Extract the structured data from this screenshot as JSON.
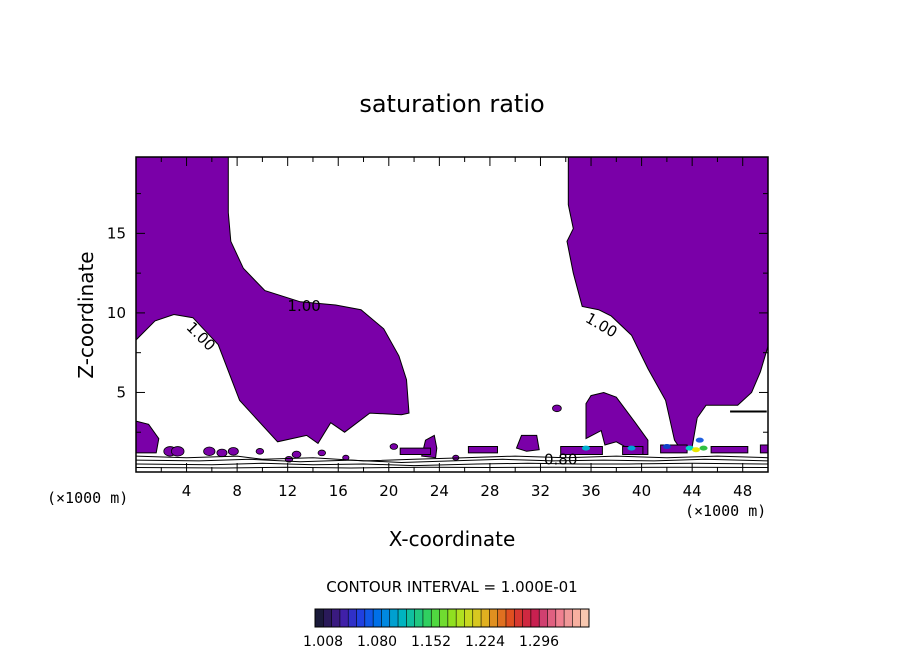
{
  "chart_data": {
    "type": "contour",
    "title": "saturation ratio",
    "xlabel": "X-coordinate",
    "ylabel": "Z-coordinate",
    "xunit_left": "(×1000 m)",
    "xunit_right": "(×1000 m)",
    "xlim": [
      0,
      50
    ],
    "ylim": [
      0,
      19.8
    ],
    "xticks": [
      4,
      8,
      12,
      16,
      20,
      24,
      28,
      32,
      36,
      40,
      44,
      48
    ],
    "yticks": [
      5,
      10,
      15
    ],
    "fill_color": "#7a00a8",
    "contour_labels": [
      {
        "text": "1.00",
        "x": 13.3,
        "y": 10.4,
        "rotate": 0
      },
      {
        "text": "1.00",
        "x": 5.1,
        "y": 8.5,
        "rotate": 45
      },
      {
        "text": "1.00",
        "x": 36.8,
        "y": 9.2,
        "rotate": 30
      },
      {
        "text": "0.80",
        "x": 33.6,
        "y": 0.75,
        "rotate": 0
      }
    ],
    "regions": [
      {
        "name": "upper-left-supersaturated",
        "points": [
          [
            0,
            19.8
          ],
          [
            7.3,
            19.8
          ],
          [
            7.3,
            16.3
          ],
          [
            7.5,
            14.5
          ],
          [
            8.5,
            12.8
          ],
          [
            10.2,
            11.4
          ],
          [
            13,
            10.7
          ],
          [
            15.8,
            10.5
          ],
          [
            17.8,
            10.2
          ],
          [
            19.6,
            9.0
          ],
          [
            20.8,
            7.3
          ],
          [
            21.4,
            5.8
          ],
          [
            21.6,
            3.7
          ],
          [
            21,
            3.6
          ],
          [
            18.5,
            3.7
          ],
          [
            16.5,
            2.5
          ],
          [
            15.4,
            3.1
          ],
          [
            14.4,
            1.8
          ],
          [
            13.5,
            2.3
          ],
          [
            11.2,
            1.9
          ],
          [
            8.2,
            4.5
          ],
          [
            6.5,
            8.0
          ],
          [
            4.5,
            9.7
          ],
          [
            3.0,
            9.9
          ],
          [
            1.5,
            9.5
          ],
          [
            0,
            8.3
          ]
        ]
      },
      {
        "name": "upper-right-supersaturated",
        "points": [
          [
            34.2,
            19.8
          ],
          [
            50,
            19.8
          ],
          [
            50,
            7.9
          ],
          [
            49.4,
            6.3
          ],
          [
            48.7,
            5.0
          ],
          [
            47.6,
            4.2
          ],
          [
            45.1,
            4.2
          ],
          [
            44.4,
            3.4
          ],
          [
            44.0,
            1.6
          ],
          [
            43.2,
            1.3
          ],
          [
            42.6,
            2.0
          ],
          [
            41.9,
            4.5
          ],
          [
            40.5,
            6.5
          ],
          [
            39.2,
            8.6
          ],
          [
            37.6,
            9.8
          ],
          [
            36.6,
            10.2
          ],
          [
            35.3,
            10.4
          ],
          [
            34.6,
            12.5
          ],
          [
            34.1,
            14.5
          ],
          [
            34.6,
            15.3
          ],
          [
            34.2,
            16.8
          ]
        ]
      },
      {
        "name": "right-blob",
        "points": [
          [
            35.6,
            2.1
          ],
          [
            35.6,
            4.3
          ],
          [
            36.0,
            4.8
          ],
          [
            37.0,
            5.0
          ],
          [
            38.0,
            4.7
          ],
          [
            39.5,
            3.1
          ],
          [
            40.5,
            2.0
          ],
          [
            40.5,
            1.1
          ],
          [
            39.8,
            1.1
          ],
          [
            38.0,
            1.9
          ],
          [
            37.1,
            1.7
          ],
          [
            36.8,
            2.6
          ]
        ]
      },
      {
        "name": "left-edge-blob",
        "points": [
          [
            0,
            3.2
          ],
          [
            1.0,
            3.0
          ],
          [
            1.8,
            2.1
          ],
          [
            1.6,
            1.2
          ],
          [
            0,
            1.2
          ]
        ]
      },
      {
        "name": "blob-23",
        "points": [
          [
            22.6,
            1.0
          ],
          [
            22.9,
            2.0
          ],
          [
            23.6,
            2.3
          ],
          [
            23.8,
            1.5
          ],
          [
            23.7,
            0.9
          ]
        ]
      },
      {
        "name": "blob-31",
        "points": [
          [
            30.1,
            1.5
          ],
          [
            30.5,
            2.3
          ],
          [
            31.7,
            2.3
          ],
          [
            31.9,
            1.4
          ],
          [
            30.9,
            1.3
          ]
        ]
      },
      {
        "name": "strip-1",
        "points": [
          [
            20.9,
            1.1
          ],
          [
            23.3,
            1.1
          ],
          [
            23.3,
            1.5
          ],
          [
            20.9,
            1.5
          ]
        ]
      },
      {
        "name": "strip-2",
        "points": [
          [
            26.3,
            1.2
          ],
          [
            28.6,
            1.2
          ],
          [
            28.6,
            1.6
          ],
          [
            26.3,
            1.6
          ]
        ]
      },
      {
        "name": "strip-3",
        "points": [
          [
            33.6,
            1.1
          ],
          [
            36.9,
            1.1
          ],
          [
            36.9,
            1.6
          ],
          [
            33.6,
            1.6
          ]
        ]
      },
      {
        "name": "strip-4",
        "points": [
          [
            38.5,
            1.1
          ],
          [
            40.1,
            1.1
          ],
          [
            40.1,
            1.6
          ],
          [
            38.5,
            1.6
          ]
        ]
      },
      {
        "name": "strip-5",
        "points": [
          [
            41.5,
            1.2
          ],
          [
            43.6,
            1.2
          ],
          [
            43.6,
            1.7
          ],
          [
            41.5,
            1.7
          ]
        ]
      },
      {
        "name": "strip-6",
        "points": [
          [
            45.5,
            1.2
          ],
          [
            48.4,
            1.2
          ],
          [
            48.4,
            1.6
          ],
          [
            45.5,
            1.6
          ]
        ]
      },
      {
        "name": "strip-7",
        "points": [
          [
            49.4,
            1.2
          ],
          [
            50,
            1.2
          ],
          [
            50,
            1.7
          ],
          [
            49.4,
            1.7
          ]
        ]
      }
    ],
    "speckles": [
      {
        "x": 2.7,
        "y": 1.3,
        "r": 0.5
      },
      {
        "x": 3.3,
        "y": 1.3,
        "r": 0.5
      },
      {
        "x": 5.8,
        "y": 1.3,
        "r": 0.45
      },
      {
        "x": 6.8,
        "y": 1.2,
        "r": 0.4
      },
      {
        "x": 7.7,
        "y": 1.3,
        "r": 0.4
      },
      {
        "x": 9.8,
        "y": 1.3,
        "r": 0.3
      },
      {
        "x": 12.1,
        "y": 0.8,
        "r": 0.3
      },
      {
        "x": 12.7,
        "y": 1.1,
        "r": 0.35
      },
      {
        "x": 14.7,
        "y": 1.2,
        "r": 0.3
      },
      {
        "x": 16.6,
        "y": 0.9,
        "r": 0.25
      },
      {
        "x": 20.4,
        "y": 1.6,
        "r": 0.3
      },
      {
        "x": 25.3,
        "y": 0.9,
        "r": 0.25
      },
      {
        "x": 33.3,
        "y": 4.0,
        "r": 0.35
      }
    ],
    "hotspots": [
      {
        "x": 43.8,
        "y": 1.5,
        "color": "#00d8c8"
      },
      {
        "x": 44.3,
        "y": 1.4,
        "color": "#e8e800"
      },
      {
        "x": 44.9,
        "y": 1.5,
        "color": "#30c040"
      },
      {
        "x": 35.6,
        "y": 1.5,
        "color": "#00b0d0"
      },
      {
        "x": 39.2,
        "y": 1.5,
        "color": "#00a0d8"
      },
      {
        "x": 42.0,
        "y": 1.6,
        "color": "#1040c8"
      },
      {
        "x": 44.6,
        "y": 2.0,
        "color": "#2060e0"
      }
    ],
    "contour_lines": [
      {
        "name": "contour-line",
        "points": [
          [
            0,
            1.0
          ],
          [
            4,
            0.9
          ],
          [
            8,
            1.0
          ],
          [
            10,
            0.8
          ],
          [
            14,
            0.9
          ],
          [
            18,
            0.7
          ],
          [
            22,
            0.8
          ],
          [
            26,
            0.9
          ],
          [
            30,
            1.0
          ],
          [
            34,
            0.9
          ],
          [
            38,
            1.0
          ],
          [
            42,
            0.9
          ],
          [
            46,
            1.0
          ],
          [
            50,
            0.9
          ]
        ]
      },
      {
        "name": "contour-line",
        "points": [
          [
            0,
            0.75
          ],
          [
            5,
            0.7
          ],
          [
            9,
            0.8
          ],
          [
            13,
            0.65
          ],
          [
            17,
            0.75
          ],
          [
            21,
            0.6
          ],
          [
            25,
            0.7
          ],
          [
            29,
            0.8
          ],
          [
            33,
            0.7
          ],
          [
            37,
            0.75
          ],
          [
            41,
            0.7
          ],
          [
            45,
            0.8
          ],
          [
            50,
            0.7
          ]
        ]
      },
      {
        "name": "contour-line",
        "points": [
          [
            0,
            0.5
          ],
          [
            6,
            0.45
          ],
          [
            10,
            0.55
          ],
          [
            14,
            0.45
          ],
          [
            18,
            0.5
          ],
          [
            22,
            0.4
          ],
          [
            27,
            0.5
          ],
          [
            31,
            0.55
          ],
          [
            35,
            0.5
          ],
          [
            39,
            0.5
          ],
          [
            44,
            0.55
          ],
          [
            50,
            0.5
          ]
        ]
      },
      {
        "name": "contour-line",
        "points": [
          [
            0,
            0.28
          ],
          [
            7,
            0.25
          ],
          [
            12,
            0.3
          ],
          [
            17,
            0.25
          ],
          [
            23,
            0.3
          ],
          [
            28,
            0.28
          ],
          [
            33,
            0.3
          ],
          [
            38,
            0.28
          ],
          [
            43,
            0.3
          ],
          [
            50,
            0.28
          ]
        ]
      }
    ],
    "dash_right": {
      "x1": 47.0,
      "x2": 49.9,
      "y": 3.8
    },
    "colorbar": {
      "label": "CONTOUR INTERVAL = 1.000E-01",
      "ticks": [
        "1.008",
        "1.080",
        "1.152",
        "1.224",
        "1.296"
      ],
      "colors": [
        "#1a1a3a",
        "#2a1a5a",
        "#3a1a80",
        "#4020a8",
        "#3030c8",
        "#2040e0",
        "#1058e8",
        "#0070e8",
        "#0088e0",
        "#00a0d0",
        "#00b4c0",
        "#10c0a0",
        "#20c880",
        "#30d060",
        "#50d840",
        "#70dc30",
        "#90e020",
        "#b0e020",
        "#c8d820",
        "#d8c820",
        "#e0b020",
        "#e09020",
        "#e07020",
        "#e05020",
        "#d83830",
        "#d02840",
        "#c82050",
        "#d04070",
        "#e06080",
        "#f08090",
        "#f09898",
        "#f8b0a0",
        "#f8c8b0"
      ]
    }
  }
}
